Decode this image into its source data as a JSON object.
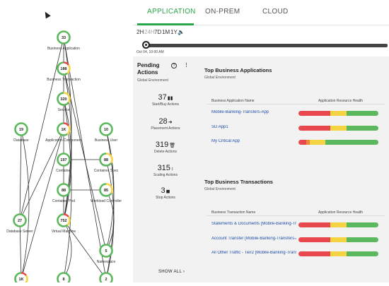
{
  "tabs": [
    {
      "label": "APPLICATION",
      "active": true
    },
    {
      "label": "ON-PREM",
      "active": false
    },
    {
      "label": "CLOUD",
      "active": false
    }
  ],
  "time_ranges": [
    "2H",
    "24H",
    "7D",
    "1M",
    "1Y"
  ],
  "selected_time_range": "24H",
  "timeline_date": "Oct 04, 10:00 AM",
  "pending_actions": {
    "title": "Pending Actions",
    "subtitle": "Global Environment",
    "help_icon": "question-circle-icon",
    "menu_icon": "kebab-menu-icon",
    "items": [
      {
        "count": "37",
        "label": "Start/Buy Actions",
        "icon": "barcode-icon"
      },
      {
        "count": "28",
        "label": "Placement Actions",
        "icon": "arrow-right-icon"
      },
      {
        "count": "319",
        "label": "Delete Actions",
        "icon": "trash-icon"
      },
      {
        "count": "315",
        "label": "Scaling Actions",
        "icon": "scale-vertical-icon"
      },
      {
        "count": "3",
        "label": "Stop Actions",
        "icon": "stop-icon"
      }
    ],
    "show_all": "SHOW ALL"
  },
  "top_apps": {
    "title": "Top Business Applications",
    "subtitle": "Global Environment",
    "col_name": "Business Application Name",
    "col_health": "Application Resource Health",
    "rows": [
      {
        "name": "Mobile-Banking-Transfers-App",
        "red": 0.4,
        "yellow": 0.2,
        "green": 0.4
      },
      {
        "name": "SD App1",
        "red": 0.4,
        "yellow": 0.2,
        "green": 0.4
      },
      {
        "name": "My Critical App",
        "red": 0.1,
        "orange": 0.04,
        "yellow": 0.2,
        "green": 0.66
      }
    ]
  },
  "top_transactions": {
    "title": "Top Business Transactions",
    "subtitle": "Global Environment",
    "col_name": "Business Transaction Name",
    "col_health": "Application Resource Health",
    "rows": [
      {
        "name": "Statements & Documents [Mobile-Banking-Tra",
        "red": 0.4,
        "yellow": 0.2,
        "green": 0.4
      },
      {
        "name": "Account Transfer [Mobile-Banking-Transfers-A",
        "red": 0.4,
        "yellow": 0.2,
        "green": 0.4
      },
      {
        "name": "All Other Traffic - Tier2 [Mobile-Banking-Trans",
        "red": 0.4,
        "yellow": 0.2,
        "green": 0.4
      }
    ]
  },
  "supply_chain": {
    "nodes": [
      {
        "id": "ba",
        "count": "33",
        "label": "Business Application"
      },
      {
        "id": "bt",
        "count": "188",
        "label": "Business Transaction"
      },
      {
        "id": "svc",
        "count": "320",
        "label": "Service"
      },
      {
        "id": "db",
        "count": "19",
        "label": "Database"
      },
      {
        "id": "ac",
        "count": "1K",
        "label": "Application Component"
      },
      {
        "id": "bu",
        "count": "10",
        "label": "Business User"
      },
      {
        "id": "ct",
        "count": "197",
        "label": "Container"
      },
      {
        "id": "cs",
        "count": "88",
        "label": "Container Spec"
      },
      {
        "id": "cp",
        "count": "88",
        "label": "Container Pod"
      },
      {
        "id": "wc",
        "count": "85",
        "label": "Workload Controller"
      },
      {
        "id": "dbs",
        "count": "27",
        "label": "Database Server"
      },
      {
        "id": "vm",
        "count": "752",
        "label": "Virtual Machine"
      },
      {
        "id": "ns",
        "count": "5",
        "label": "Namespace"
      },
      {
        "id": "b1",
        "count": "1K",
        "label": ""
      },
      {
        "id": "b2",
        "count": "8",
        "label": ""
      },
      {
        "id": "b3",
        "count": "2",
        "label": ""
      }
    ]
  },
  "colors": {
    "accent": "#2aa64a",
    "red": "#e8474d",
    "yellow": "#f5d443",
    "green": "#5cb85c",
    "orange": "#f0883a",
    "link": "#1f4fa8"
  }
}
